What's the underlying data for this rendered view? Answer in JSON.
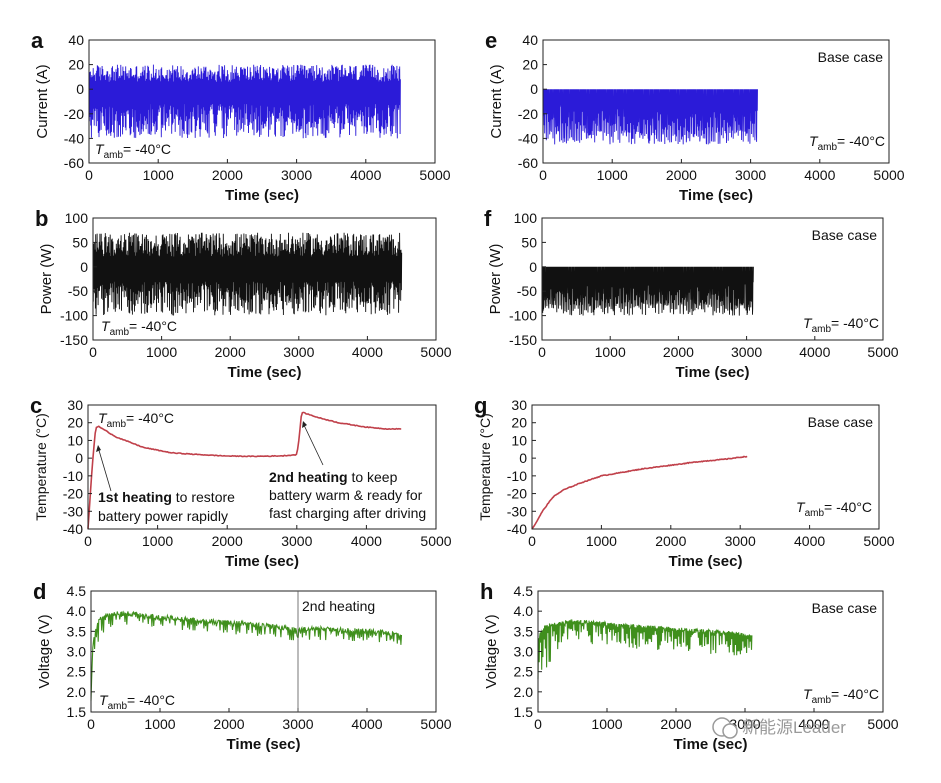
{
  "watermark": "新能源Leader",
  "chart_data": [
    {
      "id": "a",
      "panel": "a",
      "type": "line",
      "color": "#2b1bd8",
      "xlabel": "Time (sec)",
      "ylabel": "Current (A)",
      "xlim": [
        0,
        5000
      ],
      "ylim": [
        -60,
        40
      ],
      "xticks": [
        0,
        1000,
        2000,
        3000,
        4000,
        5000
      ],
      "yticks": [
        -60,
        -40,
        -20,
        0,
        20,
        40
      ],
      "annotation": "T_amb = -40°C",
      "series": [
        {
          "name": "Current",
          "x_range": [
            0,
            4500
          ],
          "values": [
            -40,
            20
          ],
          "baseline": -5,
          "pattern": "fast charge/discharge cycling between about -40 A and +20 A"
        }
      ]
    },
    {
      "id": "b",
      "panel": "b",
      "type": "line",
      "color": "#111111",
      "xlabel": "Time (sec)",
      "ylabel": "Power (W)",
      "xlim": [
        0,
        5000
      ],
      "ylim": [
        -150,
        100
      ],
      "xticks": [
        0,
        1000,
        2000,
        3000,
        4000,
        5000
      ],
      "yticks": [
        -150,
        -100,
        -50,
        0,
        50,
        100
      ],
      "annotation": "T_amb = -40°C",
      "series": [
        {
          "name": "Power",
          "x_range": [
            0,
            4500
          ],
          "values": [
            -100,
            70
          ],
          "baseline": -15,
          "pattern": "cycling between about -100 W and +70 W"
        }
      ]
    },
    {
      "id": "c",
      "panel": "c",
      "type": "line",
      "color": "#c0404a",
      "xlabel": "Time (sec)",
      "ylabel": "Temperature (°C)",
      "xlim": [
        0,
        5000
      ],
      "ylim": [
        -40,
        30
      ],
      "xticks": [
        0,
        1000,
        2000,
        3000,
        4000,
        5000
      ],
      "yticks": [
        -40,
        -30,
        -20,
        -10,
        0,
        10,
        20,
        30
      ],
      "annotation": "T_amb = -40°C",
      "series": [
        {
          "name": "Temperature",
          "x": [
            0,
            60,
            110,
            150,
            400,
            800,
            1200,
            1600,
            2000,
            2400,
            2800,
            3000,
            3030,
            3070,
            3300,
            3600,
            4000,
            4300,
            4500
          ],
          "y": [
            -40,
            -5,
            17,
            18,
            12,
            6,
            3,
            2,
            1.2,
            1.0,
            1.3,
            2,
            10,
            26,
            23,
            20,
            17.5,
            16.5,
            16.5
          ]
        }
      ],
      "callouts": [
        {
          "bold": "1st heating",
          "text": " to restore",
          "line2": "battery power rapidly",
          "target": [
            110,
            17
          ]
        },
        {
          "bold": "2nd heating",
          "text": " to keep",
          "line2": "battery warm & ready for",
          "line3": "fast charging after driving",
          "target": [
            3060,
            25
          ]
        }
      ]
    },
    {
      "id": "d",
      "panel": "d",
      "type": "line",
      "color": "#3f8f1c",
      "xlabel": "Time (sec)",
      "ylabel": "Voltage (V)",
      "xlim": [
        0,
        5000
      ],
      "ylim": [
        1.5,
        4.5
      ],
      "xticks": [
        0,
        1000,
        2000,
        3000,
        4000,
        5000
      ],
      "yticks": [
        1.5,
        2.0,
        2.5,
        3.0,
        3.5,
        4.0,
        4.5
      ],
      "annotation": "T_amb = -40°C",
      "marker_label": "2nd heating",
      "marker_x": 3000,
      "series": [
        {
          "name": "Voltage",
          "upper": {
            "x": [
              0,
              30,
              100,
              200,
              500,
              1000,
              1500,
              2000,
              2500,
              3000,
              3300,
              3800,
              4200,
              4500
            ],
            "y": [
              2.0,
              3.3,
              3.8,
              3.98,
              4.0,
              3.92,
              3.85,
              3.78,
              3.7,
              3.6,
              3.62,
              3.58,
              3.55,
              3.45
            ]
          },
          "dips": 0.35
        }
      ]
    },
    {
      "id": "e",
      "panel": "e",
      "type": "line",
      "color": "#2b1bd8",
      "xlabel": "Time (sec)",
      "ylabel": "Current (A)",
      "xlim": [
        0,
        5000
      ],
      "ylim": [
        -60,
        40
      ],
      "xticks": [
        0,
        1000,
        2000,
        3000,
        4000,
        5000
      ],
      "yticks": [
        -60,
        -40,
        -20,
        0,
        20,
        40
      ],
      "annotation": "T_amb = -40°C",
      "case_label": "Base case",
      "series": [
        {
          "name": "Current",
          "x_range": [
            0,
            3100
          ],
          "values": [
            -45,
            0
          ],
          "baseline": 0,
          "pattern": "discharge-only pulses between 0 and about -40 A"
        }
      ]
    },
    {
      "id": "f",
      "panel": "f",
      "type": "line",
      "color": "#111111",
      "xlabel": "Time (sec)",
      "ylabel": "Power (W)",
      "xlim": [
        0,
        5000
      ],
      "ylim": [
        -150,
        100
      ],
      "xticks": [
        0,
        1000,
        2000,
        3000,
        4000,
        5000
      ],
      "yticks": [
        -150,
        -100,
        -50,
        0,
        50,
        100
      ],
      "annotation": "T_amb = -40°C",
      "case_label": "Base case",
      "series": [
        {
          "name": "Power",
          "x_range": [
            0,
            3100
          ],
          "values": [
            -100,
            0
          ],
          "baseline": 0,
          "pattern": "pulses between 0 and about -100 W"
        }
      ]
    },
    {
      "id": "g",
      "panel": "g",
      "type": "line",
      "color": "#c0404a",
      "xlabel": "Time (sec)",
      "ylabel": "Temperature (°C)",
      "xlim": [
        0,
        5000
      ],
      "ylim": [
        -40,
        30
      ],
      "xticks": [
        0,
        1000,
        2000,
        3000,
        4000,
        5000
      ],
      "yticks": [
        -40,
        -30,
        -20,
        -10,
        0,
        10,
        20,
        30
      ],
      "annotation": "T_amb = -40°C",
      "case_label": "Base case",
      "series": [
        {
          "name": "Temperature",
          "x": [
            0,
            50,
            150,
            300,
            450,
            700,
            1000,
            1300,
            1600,
            2000,
            2400,
            2800,
            3100
          ],
          "y": [
            -40,
            -37,
            -30,
            -22,
            -18,
            -14,
            -10,
            -8,
            -6,
            -4,
            -2,
            -0.5,
            1
          ]
        }
      ]
    },
    {
      "id": "h",
      "panel": "h",
      "type": "line",
      "color": "#3f8f1c",
      "xlabel": "Time (sec)",
      "ylabel": "Voltage (V)",
      "xlim": [
        0,
        5000
      ],
      "ylim": [
        1.5,
        4.5
      ],
      "xticks": [
        0,
        1000,
        2000,
        3000,
        4000,
        5000
      ],
      "yticks": [
        1.5,
        2.0,
        2.5,
        3.0,
        3.5,
        4.0,
        4.5
      ],
      "annotation": "T_amb = -40°C",
      "case_label": "Base case",
      "series": [
        {
          "name": "Voltage",
          "upper": {
            "x": [
              0,
              50,
              150,
              300,
              500,
              800,
              1200,
              1600,
              2000,
              2400,
              2800,
              3100
            ],
            "y": [
              3.3,
              3.6,
              3.7,
              3.75,
              3.8,
              3.76,
              3.7,
              3.65,
              3.6,
              3.55,
              3.5,
              3.45
            ]
          },
          "dips": 0.6
        }
      ]
    }
  ]
}
